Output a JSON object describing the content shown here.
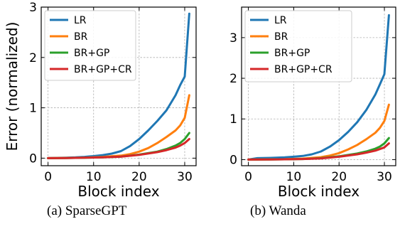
{
  "chart_data": [
    {
      "type": "line",
      "ylabel": "Error (normalized)",
      "xlabel": "Block index",
      "xlim": [
        -1.5,
        32.5
      ],
      "ylim": [
        -0.15,
        3.0
      ],
      "xticks": [
        0,
        10,
        20,
        30
      ],
      "yticks": [
        0,
        1,
        2,
        3
      ],
      "grid": true,
      "legend_position": "top-left",
      "series": [
        {
          "name": "LR",
          "color": "#1f77b4",
          "x": [
            0,
            2,
            4,
            6,
            8,
            10,
            12,
            14,
            16,
            18,
            20,
            22,
            24,
            26,
            28,
            29,
            30,
            31
          ],
          "y": [
            0,
            0.005,
            0.01,
            0.015,
            0.025,
            0.04,
            0.06,
            0.09,
            0.14,
            0.24,
            0.38,
            0.55,
            0.74,
            0.95,
            1.25,
            1.45,
            1.62,
            2.87
          ]
        },
        {
          "name": "BR",
          "color": "#ff7f0e",
          "x": [
            0,
            4,
            8,
            12,
            16,
            18,
            20,
            22,
            24,
            26,
            28,
            29,
            30,
            31
          ],
          "y": [
            0,
            0.005,
            0.01,
            0.025,
            0.05,
            0.08,
            0.13,
            0.2,
            0.3,
            0.42,
            0.55,
            0.65,
            0.8,
            1.25
          ]
        },
        {
          "name": "BR+GP",
          "color": "#2ca02c",
          "x": [
            0,
            4,
            8,
            12,
            16,
            20,
            24,
            26,
            28,
            29,
            30,
            31
          ],
          "y": [
            0,
            0.003,
            0.008,
            0.015,
            0.03,
            0.07,
            0.13,
            0.18,
            0.25,
            0.3,
            0.38,
            0.5
          ]
        },
        {
          "name": "BR+GP+CR",
          "color": "#d62728",
          "x": [
            0,
            4,
            8,
            12,
            16,
            20,
            24,
            26,
            28,
            29,
            30,
            31
          ],
          "y": [
            0,
            0.003,
            0.008,
            0.015,
            0.03,
            0.065,
            0.12,
            0.16,
            0.21,
            0.25,
            0.3,
            0.38
          ]
        }
      ]
    },
    {
      "type": "line",
      "ylabel": "",
      "xlabel": "Block index",
      "xlim": [
        -1.5,
        32.5
      ],
      "ylim": [
        -0.15,
        3.75
      ],
      "xticks": [
        0,
        10,
        20,
        30
      ],
      "yticks": [
        0,
        1,
        2,
        3
      ],
      "grid": true,
      "legend_position": "top-left",
      "series": [
        {
          "name": "LR",
          "color": "#1f77b4",
          "x": [
            0,
            2,
            4,
            6,
            8,
            10,
            12,
            14,
            16,
            18,
            20,
            22,
            24,
            26,
            28,
            29,
            30,
            31
          ],
          "y": [
            0,
            0.035,
            0.04,
            0.045,
            0.055,
            0.07,
            0.09,
            0.13,
            0.2,
            0.32,
            0.48,
            0.68,
            0.92,
            1.22,
            1.6,
            1.85,
            2.1,
            3.55
          ]
        },
        {
          "name": "BR",
          "color": "#ff7f0e",
          "x": [
            0,
            4,
            8,
            12,
            16,
            18,
            20,
            22,
            24,
            26,
            28,
            29,
            30,
            31
          ],
          "y": [
            0,
            0.005,
            0.01,
            0.025,
            0.06,
            0.1,
            0.16,
            0.25,
            0.36,
            0.5,
            0.66,
            0.78,
            0.95,
            1.35
          ]
        },
        {
          "name": "BR+GP",
          "color": "#2ca02c",
          "x": [
            0,
            4,
            8,
            12,
            16,
            20,
            24,
            26,
            28,
            29,
            30,
            31
          ],
          "y": [
            0,
            0.003,
            0.008,
            0.015,
            0.035,
            0.08,
            0.15,
            0.2,
            0.27,
            0.32,
            0.4,
            0.53
          ]
        },
        {
          "name": "BR+GP+CR",
          "color": "#d62728",
          "x": [
            0,
            4,
            8,
            12,
            16,
            20,
            24,
            26,
            28,
            29,
            30,
            31
          ],
          "y": [
            0,
            0.003,
            0.008,
            0.015,
            0.03,
            0.07,
            0.13,
            0.17,
            0.22,
            0.26,
            0.3,
            0.4
          ]
        }
      ]
    }
  ],
  "captions": {
    "a": "(a) SparseGPT",
    "b": "(b) Wanda"
  }
}
